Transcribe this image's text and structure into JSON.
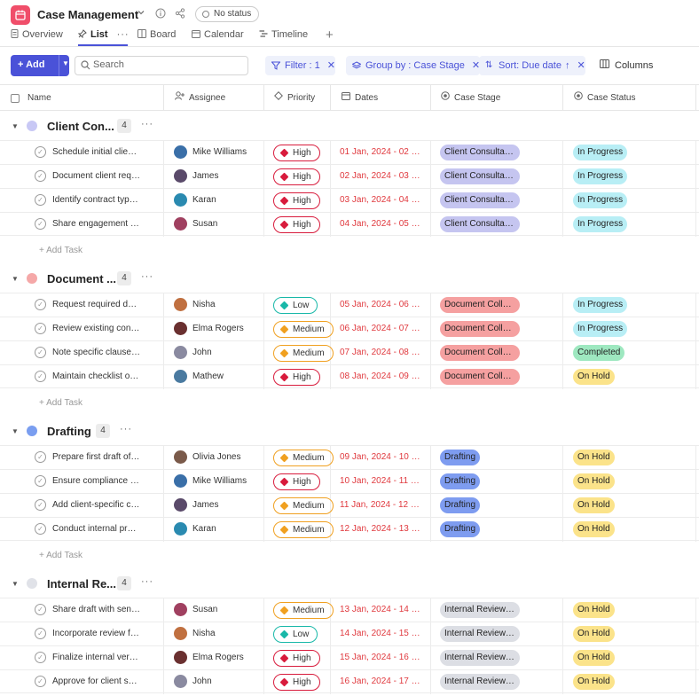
{
  "header": {
    "title": "Case Management",
    "status_label": "No status"
  },
  "tabs": [
    {
      "label": "Overview",
      "icon": "doc-icon"
    },
    {
      "label": "List",
      "icon": "pin-icon",
      "active": true
    },
    {
      "label": "Board",
      "icon": "board-icon"
    },
    {
      "label": "Calendar",
      "icon": "calendar-icon"
    },
    {
      "label": "Timeline",
      "icon": "timeline-icon"
    }
  ],
  "toolbar": {
    "add_label": "Add",
    "search_placeholder": "Search",
    "filter_label": "Filter : 1",
    "group_label": "Group by : Case Stage",
    "sort_label": "Sort: Due date",
    "columns_label": "Columns"
  },
  "columns": [
    "Name",
    "Assignee",
    "Priority",
    "Dates",
    "Case Stage",
    "Case Status"
  ],
  "add_task_label": "Add Task",
  "colors": {
    "accent": "#4a52d8",
    "high": "#d81b3c",
    "medium": "#f0a020",
    "low": "#18b8a8",
    "in_progress": "#b8eef5",
    "completed": "#9ee8c0",
    "on_hold": "#fbe38a"
  },
  "groups": [
    {
      "title": "Client Con...",
      "count": "4",
      "dot_color": "#c8c8f5",
      "stage_color": "#c5c5f0",
      "tasks": [
        {
          "name": "Schedule initial client ...",
          "assignee": "Mike Williams",
          "avatar": "#3a6fa8",
          "priority": "High",
          "dates": "01 Jan, 2024 - 02 Jan...",
          "stage": "Client Consultatio...",
          "status": "In Progress"
        },
        {
          "name": "Document client requir...",
          "assignee": "James",
          "avatar": "#5a4a6a",
          "priority": "High",
          "dates": "02 Jan, 2024 - 03 Jan...",
          "stage": "Client Consultatio...",
          "status": "In Progress"
        },
        {
          "name": "Identify contract type ...",
          "assignee": "Karan",
          "avatar": "#2a8ab0",
          "priority": "High",
          "dates": "03 Jan, 2024 - 04 Jan...",
          "stage": "Client Consultatio...",
          "status": "In Progress"
        },
        {
          "name": "Share engagement lett...",
          "assignee": "Susan",
          "avatar": "#a04060",
          "priority": "High",
          "dates": "04 Jan, 2024 - 05 Jan...",
          "stage": "Client Consultatio...",
          "status": "In Progress"
        }
      ]
    },
    {
      "title": "Document ...",
      "count": "4",
      "dot_color": "#f5a8a8",
      "stage_color": "#f5a0a0",
      "tasks": [
        {
          "name": "Request required docu...",
          "assignee": "Nisha",
          "avatar": "#c07040",
          "priority": "Low",
          "dates": "05 Jan, 2024 - 06 Jan...",
          "stage": "Document Collect...",
          "status": "In Progress"
        },
        {
          "name": "Review existing contra...",
          "assignee": "Elma Rogers",
          "avatar": "#6a3030",
          "priority": "Medium",
          "dates": "06 Jan, 2024 - 07 Jan...",
          "stage": "Document Collect...",
          "status": "In Progress"
        },
        {
          "name": "Note specific clauses cl...",
          "assignee": "John",
          "avatar": "#8a8aa0",
          "priority": "Medium",
          "dates": "07 Jan, 2024 - 08 Jan...",
          "stage": "Document Collect...",
          "status": "Completed"
        },
        {
          "name": "Maintain checklist of r...",
          "assignee": "Mathew",
          "avatar": "#4a7aa0",
          "priority": "High",
          "dates": "08 Jan, 2024 - 09 Jan...",
          "stage": "Document Collect...",
          "status": "On Hold"
        }
      ]
    },
    {
      "title": "Drafting",
      "count": "4",
      "dot_color": "#7a9ef0",
      "stage_color": "#7e9cf0",
      "tasks": [
        {
          "name": "Prepare first draft of c...",
          "assignee": "Olivia Jones",
          "avatar": "#7a5a4a",
          "priority": "Medium",
          "dates": "09 Jan, 2024 - 10 Jan...",
          "stage": "Drafting",
          "status": "On Hold"
        },
        {
          "name": "Ensure compliance wit...",
          "assignee": "Mike Williams",
          "avatar": "#3a6fa8",
          "priority": "High",
          "dates": "10 Jan, 2024 - 11 Jan...",
          "stage": "Drafting",
          "status": "On Hold"
        },
        {
          "name": "Add client-specific cla...",
          "assignee": "James",
          "avatar": "#5a4a6a",
          "priority": "Medium",
          "dates": "11 Jan, 2024 - 12 Jan...",
          "stage": "Drafting",
          "status": "On Hold"
        },
        {
          "name": "Conduct internal proof...",
          "assignee": "Karan",
          "avatar": "#2a8ab0",
          "priority": "Medium",
          "dates": "12 Jan, 2024 - 13 Jan...",
          "stage": "Drafting",
          "status": "On Hold"
        }
      ]
    },
    {
      "title": "Internal Re...",
      "count": "4",
      "dot_color": "#e0e2e8",
      "stage_color": "#dcdee4",
      "tasks": [
        {
          "name": "Share draft with senior...",
          "assignee": "Susan",
          "avatar": "#a04060",
          "priority": "Medium",
          "dates": "13 Jan, 2024 - 14 Jan...",
          "stage": "Internal Review & ...",
          "status": "On Hold"
        },
        {
          "name": "Incorporate review fee...",
          "assignee": "Nisha",
          "avatar": "#c07040",
          "priority": "Low",
          "dates": "14 Jan, 2024 - 15 Jan...",
          "stage": "Internal Review & ...",
          "status": "On Hold"
        },
        {
          "name": "Finalize internal version",
          "assignee": "Elma Rogers",
          "avatar": "#6a3030",
          "priority": "High",
          "dates": "15 Jan, 2024 - 16 Jan...",
          "stage": "Internal Review & ...",
          "status": "On Hold"
        },
        {
          "name": "Approve for client shar...",
          "assignee": "John",
          "avatar": "#8a8aa0",
          "priority": "High",
          "dates": "16 Jan, 2024 - 17 Jan...",
          "stage": "Internal Review & ...",
          "status": "On Hold"
        }
      ]
    }
  ]
}
